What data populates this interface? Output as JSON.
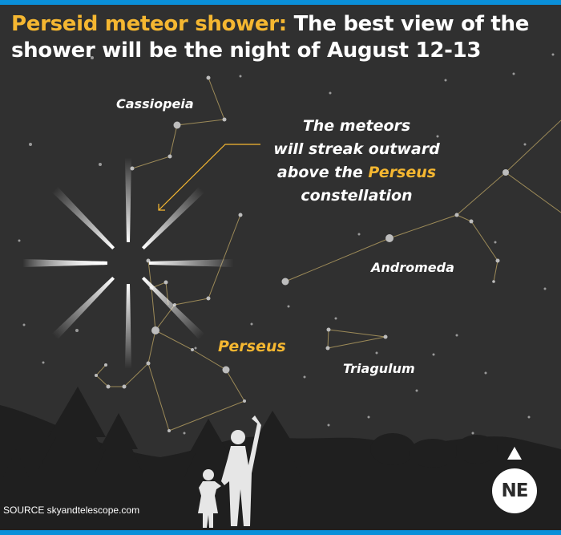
{
  "headline": {
    "accent": "Perseid meteor shower:",
    "rest": "The best view of the shower will be the night of August 12-13"
  },
  "callout": {
    "line1": "The meteors",
    "line2": "will streak outward",
    "line3_prefix": "above the",
    "line3_accent": "Perseus",
    "line4": "constellation"
  },
  "labels": {
    "cassiopeia": "Cassiopeia",
    "andromeda": "Andromeda",
    "perseus": "Perseus",
    "triangulum": "Triagulum"
  },
  "compass": {
    "direction": "NE",
    "icon": "north-arrow-icon"
  },
  "source": "SOURCE  skyandtelescope.com",
  "colors": {
    "accent": "#f5b731",
    "bar": "#0a8fd9",
    "sky": "#303030",
    "constellation_line": "#9c8a58"
  }
}
